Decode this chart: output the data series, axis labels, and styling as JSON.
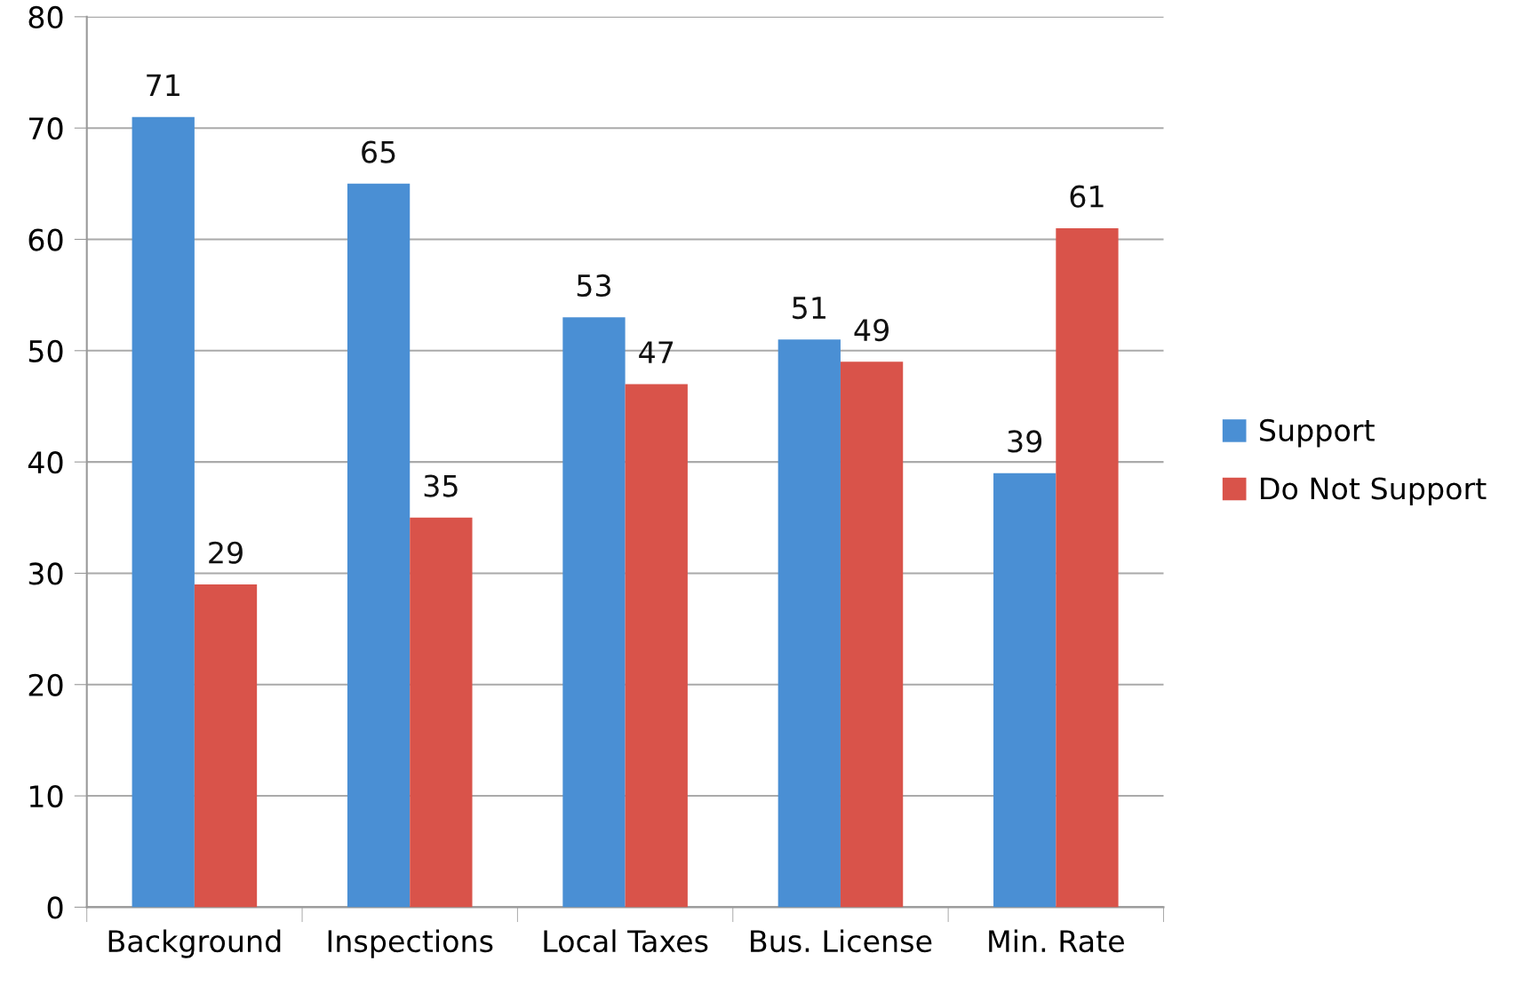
{
  "chart_data": {
    "type": "bar",
    "categories": [
      "Background",
      "Inspections",
      "Local Taxes",
      "Bus. License",
      "Min. Rate"
    ],
    "series": [
      {
        "name": "Support",
        "color": "#4a8fd4",
        "values": [
          71,
          65,
          53,
          51,
          39
        ]
      },
      {
        "name": "Do Not Support",
        "color": "#d9534a",
        "values": [
          29,
          35,
          47,
          49,
          61
        ]
      }
    ],
    "ylim": [
      0,
      80
    ],
    "yticks": [
      0,
      10,
      20,
      30,
      40,
      50,
      60,
      70,
      80
    ],
    "grid": "y",
    "legend": "right",
    "data_labels": true
  }
}
